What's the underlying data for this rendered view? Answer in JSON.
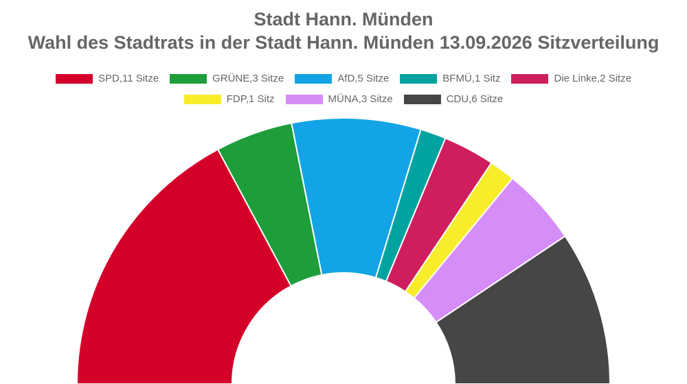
{
  "title_line1": "Stadt Hann. Münden",
  "title_line2": "Wahl des Stadtrats in der Stadt Hann. Münden 13.09.2026 Sitzverteilung",
  "chart_data": {
    "type": "pie",
    "variant": "half-donut",
    "title": "Stadt Hann. Münden — Wahl des Stadtrats in der Stadt Hann. Münden 13.09.2026 Sitzverteilung",
    "legend_placement": "top",
    "series": [
      {
        "name": "SPD",
        "label": "SPD,11 Sitze",
        "value": 11,
        "color": "#d4002a"
      },
      {
        "name": "GRÜNE",
        "label": "GRÜNE,3 Sitze",
        "value": 3,
        "color": "#1e9e3a"
      },
      {
        "name": "AfD",
        "label": "AfD,5 Sitze",
        "value": 5,
        "color": "#12a4e6"
      },
      {
        "name": "BFMÜ",
        "label": "BFMÜ,1 Sitz",
        "value": 1,
        "color": "#00a3a0"
      },
      {
        "name": "Die Linke",
        "label": "Die Linke,2 Sitze",
        "value": 2,
        "color": "#cf1e5d"
      },
      {
        "name": "FDP",
        "label": "FDP,1 Sitz",
        "value": 1,
        "color": "#f9ec2b"
      },
      {
        "name": "MÜNA",
        "label": "MÜNA,3 Sitze",
        "value": 3,
        "color": "#d58df7"
      },
      {
        "name": "CDU",
        "label": "CDU,6 Sitze",
        "value": 6,
        "color": "#464646"
      }
    ]
  }
}
